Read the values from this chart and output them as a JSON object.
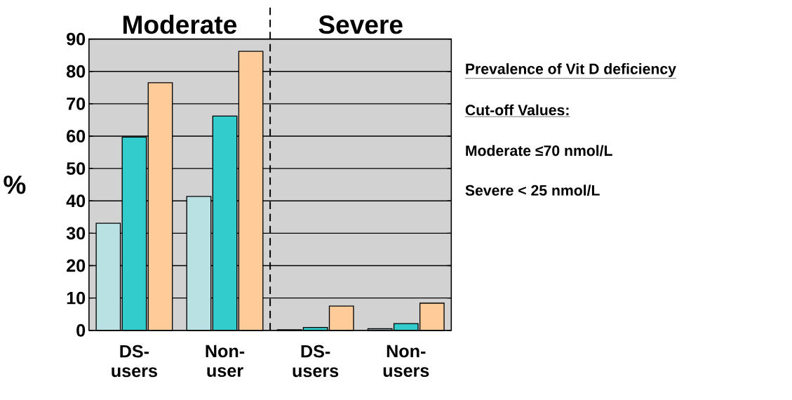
{
  "chart_data": {
    "type": "bar",
    "title": "Prevalence of Vit D deficiency",
    "subtitle": "Cut-off Values:",
    "ylabel": "%",
    "categories": [
      "DS-users",
      "Non-user",
      "DS-users",
      "Non-users"
    ],
    "series": [
      {
        "color": "#b9e0e3",
        "values": [
          33.1,
          41.4,
          0.2,
          0.5
        ]
      },
      {
        "color": "#33cccc",
        "values": [
          59.7,
          66.2,
          0.9,
          2.1
        ]
      },
      {
        "color": "#ffcc99",
        "values": [
          76.5,
          86.2,
          7.5,
          8.4
        ]
      }
    ],
    "ylim": [
      0,
      90
    ],
    "yticks": [
      0,
      10,
      20,
      30,
      40,
      50,
      60,
      70,
      80,
      90
    ],
    "grid": "y",
    "annotations": [
      "Moderate",
      "Severe",
      "Moderate ≤70  nmol/L",
      "Severe   < 25 nmol/L"
    ]
  }
}
